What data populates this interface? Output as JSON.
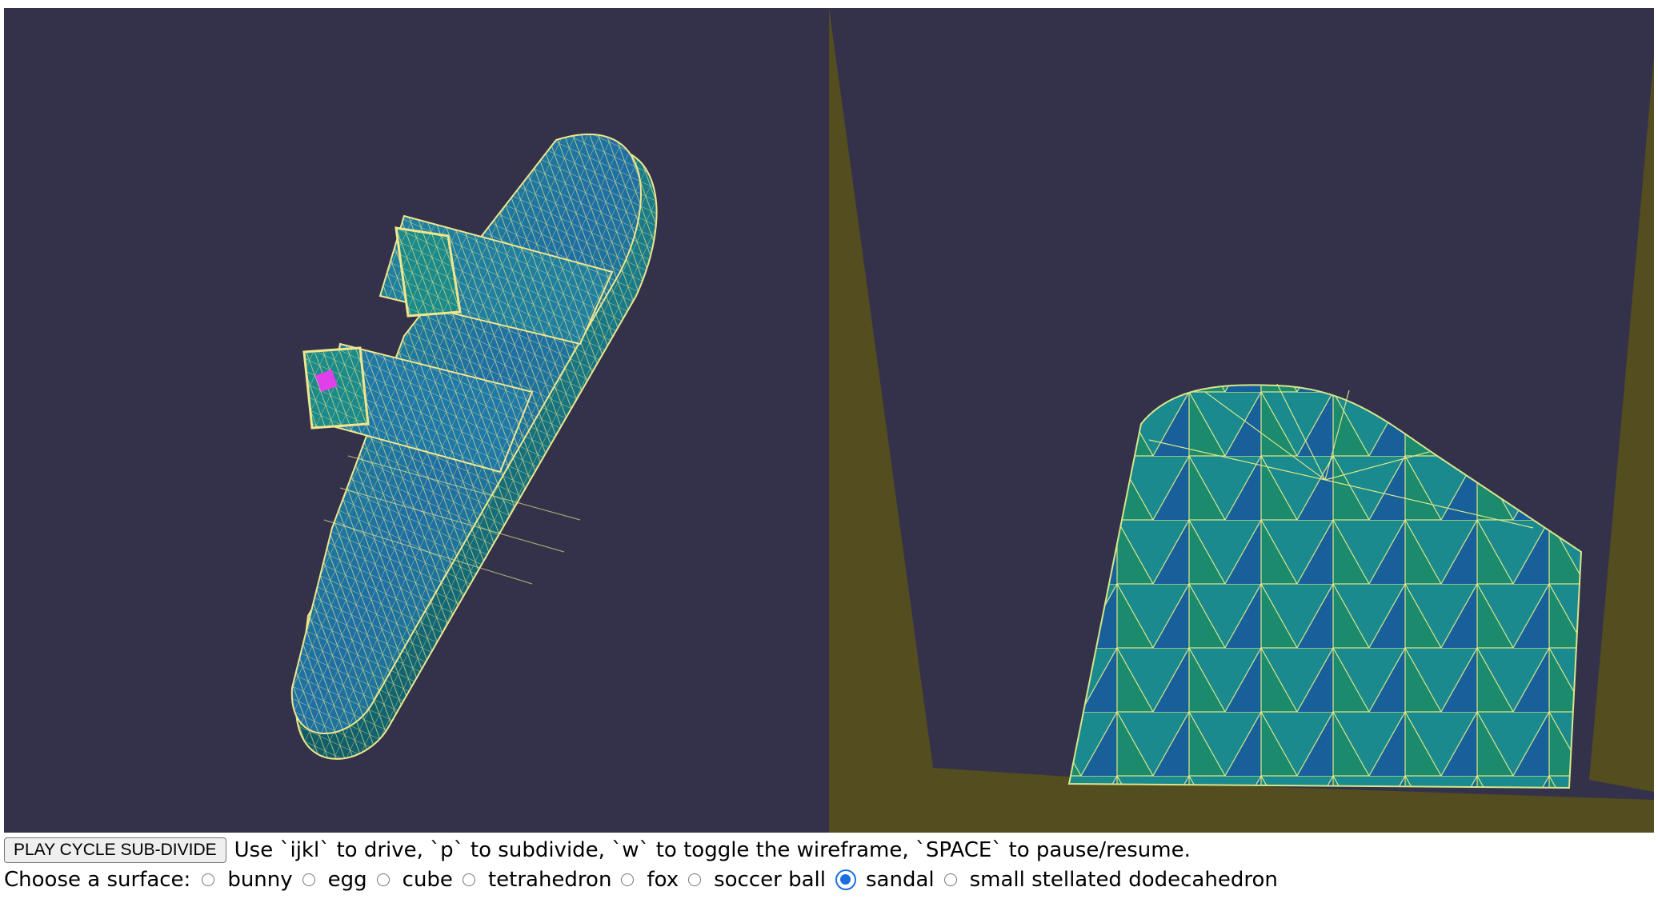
{
  "viewports": {
    "background_color": "#34324a",
    "left": {
      "name": "overview-3d-view",
      "model": "sandal",
      "mesh_colors": [
        "#1d8f8a",
        "#1e6fa5",
        "#188a6a"
      ],
      "wire_color": "#f0e68c",
      "marker_color": "#e040e8"
    },
    "right": {
      "name": "driver-3d-view",
      "ground_color": "#534d1f"
    }
  },
  "controls": {
    "play_button_label": "PLAY CYCLE SUB-DIVIDE",
    "instructions": "Use `ijkl` to drive, `p` to subdivide, `w` to toggle the wireframe, `SPACE` to pause/resume.",
    "surface_label": "Choose a surface:",
    "surfaces": [
      {
        "label": "bunny",
        "checked": false
      },
      {
        "label": "egg",
        "checked": false
      },
      {
        "label": "cube",
        "checked": false
      },
      {
        "label": "tetrahedron",
        "checked": false
      },
      {
        "label": "fox",
        "checked": false
      },
      {
        "label": "soccer ball",
        "checked": false
      },
      {
        "label": "sandal",
        "checked": true
      },
      {
        "label": "small stellated dodecahedron",
        "checked": false
      }
    ],
    "accent_color": "#1a6fe0"
  }
}
